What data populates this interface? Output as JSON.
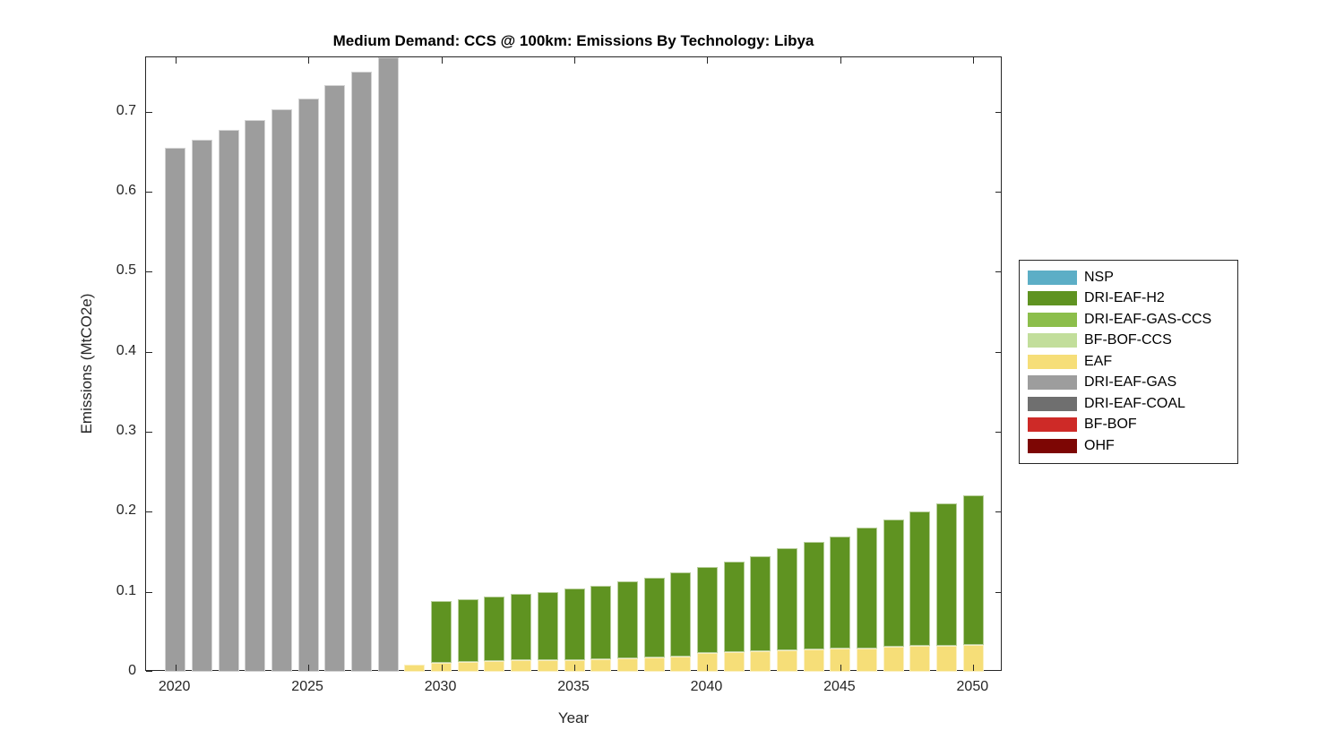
{
  "figure": {
    "title": "Medium Demand: CCS @ 100km: Emissions By Technology: Libya",
    "xlabel": "Year",
    "ylabel": "Emissions (MtCO2e)",
    "axis_color": "#262626",
    "background_color": "#ffffff"
  },
  "legend": {
    "position": "right-outside",
    "entries": [
      {
        "label": "NSP",
        "color": "#5CAEC6"
      },
      {
        "label": "DRI-EAF-H2",
        "color": "#5F9321"
      },
      {
        "label": "DRI-EAF-GAS-CCS",
        "color": "#8CBE4B"
      },
      {
        "label": "BF-BOF-CCS",
        "color": "#C2DE9B"
      },
      {
        "label": "EAF",
        "color": "#F6DE78"
      },
      {
        "label": "DRI-EAF-GAS",
        "color": "#9D9D9D"
      },
      {
        "label": "DRI-EAF-COAL",
        "color": "#6F6F6F"
      },
      {
        "label": "BF-BOF",
        "color": "#CE2A27"
      },
      {
        "label": "OHF",
        "color": "#7D0604"
      }
    ]
  },
  "chart_data": {
    "type": "bar",
    "stacked": true,
    "title": "Medium Demand: CCS @ 100km: Emissions By Technology: Libya",
    "xlabel": "Year",
    "ylabel": "Emissions (MtCO2e)",
    "x": [
      2020,
      2021,
      2022,
      2023,
      2024,
      2025,
      2026,
      2027,
      2028,
      2029,
      2030,
      2031,
      2032,
      2033,
      2034,
      2035,
      2036,
      2037,
      2038,
      2039,
      2040,
      2041,
      2042,
      2043,
      2044,
      2045,
      2046,
      2047,
      2048,
      2049,
      2050
    ],
    "series": [
      {
        "name": "NSP",
        "color": "#5CAEC6",
        "values": [
          0,
          0,
          0,
          0,
          0,
          0,
          0,
          0,
          0,
          0,
          0,
          0,
          0,
          0,
          0,
          0,
          0,
          0,
          0,
          0,
          0,
          0,
          0,
          0,
          0,
          0,
          0,
          0,
          0,
          0,
          0
        ]
      },
      {
        "name": "DRI-EAF-H2",
        "color": "#5F9321",
        "values": [
          0,
          0,
          0,
          0,
          0,
          0,
          0,
          0,
          0,
          0,
          0.077,
          0.079,
          0.081,
          0.083,
          0.086,
          0.089,
          0.092,
          0.096,
          0.1,
          0.105,
          0.108,
          0.113,
          0.118,
          0.127,
          0.134,
          0.14,
          0.151,
          0.159,
          0.168,
          0.178,
          0.187
        ]
      },
      {
        "name": "DRI-EAF-GAS-CCS",
        "color": "#8CBE4B",
        "values": [
          0,
          0,
          0,
          0,
          0,
          0,
          0,
          0,
          0,
          0,
          0,
          0,
          0,
          0,
          0,
          0,
          0,
          0,
          0,
          0,
          0,
          0,
          0,
          0,
          0,
          0,
          0,
          0,
          0,
          0,
          0
        ]
      },
      {
        "name": "BF-BOF-CCS",
        "color": "#C2DE9B",
        "values": [
          0,
          0,
          0,
          0,
          0,
          0,
          0,
          0,
          0,
          0,
          0,
          0,
          0,
          0,
          0,
          0,
          0,
          0,
          0,
          0,
          0,
          0,
          0,
          0,
          0,
          0,
          0,
          0,
          0,
          0,
          0
        ]
      },
      {
        "name": "EAF",
        "color": "#F6DE78",
        "values": [
          0,
          0,
          0,
          0,
          0,
          0,
          0,
          0,
          0,
          0.009,
          0.011,
          0.012,
          0.013,
          0.014,
          0.014,
          0.015,
          0.016,
          0.017,
          0.018,
          0.019,
          0.023,
          0.025,
          0.026,
          0.027,
          0.028,
          0.029,
          0.029,
          0.031,
          0.032,
          0.033,
          0.034
        ]
      },
      {
        "name": "DRI-EAF-GAS",
        "color": "#9D9D9D",
        "values": [
          0.655,
          0.665,
          0.677,
          0.69,
          0.703,
          0.717,
          0.733,
          0.75,
          0.77,
          0,
          0,
          0,
          0,
          0,
          0,
          0,
          0,
          0,
          0,
          0,
          0,
          0,
          0,
          0,
          0,
          0,
          0,
          0,
          0,
          0,
          0
        ]
      },
      {
        "name": "DRI-EAF-COAL",
        "color": "#6F6F6F",
        "values": [
          0,
          0,
          0,
          0,
          0,
          0,
          0,
          0,
          0,
          0,
          0,
          0,
          0,
          0,
          0,
          0,
          0,
          0,
          0,
          0,
          0,
          0,
          0,
          0,
          0,
          0,
          0,
          0,
          0,
          0,
          0
        ]
      },
      {
        "name": "BF-BOF",
        "color": "#CE2A27",
        "values": [
          0,
          0,
          0,
          0,
          0,
          0,
          0,
          0,
          0,
          0,
          0,
          0,
          0,
          0,
          0,
          0,
          0,
          0,
          0,
          0,
          0,
          0,
          0,
          0,
          0,
          0,
          0,
          0,
          0,
          0,
          0
        ]
      },
      {
        "name": "OHF",
        "color": "#7D0604",
        "values": [
          0,
          0,
          0,
          0,
          0,
          0,
          0,
          0,
          0,
          0,
          0,
          0,
          0,
          0,
          0,
          0,
          0,
          0,
          0,
          0,
          0,
          0,
          0,
          0,
          0,
          0,
          0,
          0,
          0,
          0,
          0
        ]
      }
    ],
    "stack_order": [
      "OHF",
      "BF-BOF",
      "DRI-EAF-COAL",
      "DRI-EAF-GAS",
      "EAF",
      "BF-BOF-CCS",
      "DRI-EAF-GAS-CCS",
      "DRI-EAF-H2",
      "NSP"
    ],
    "ylim": [
      0,
      0.768
    ],
    "yticks": [
      0,
      0.1,
      0.2,
      0.3,
      0.4,
      0.5,
      0.6,
      0.7
    ],
    "ytick_labels": [
      "0",
      "0.1",
      "0.2",
      "0.3",
      "0.4",
      "0.5",
      "0.6",
      "0.7"
    ],
    "xticks": [
      2020,
      2025,
      2030,
      2035,
      2040,
      2045,
      2050
    ],
    "xtick_labels": [
      "2020",
      "2025",
      "2030",
      "2035",
      "2040",
      "2045",
      "2050"
    ],
    "xlim": [
      2018.9,
      2051.1
    ],
    "bar_width_fraction": 0.78,
    "grid": false,
    "legend_position": "outside-right",
    "note": "2028 DRI-EAF-GAS bar is clipped by the top of the axes"
  }
}
